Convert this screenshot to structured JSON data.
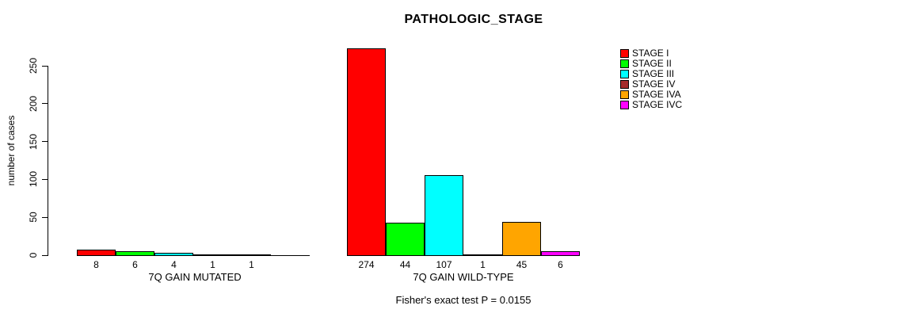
{
  "title": "PATHOLOGIC_STAGE",
  "chart_data": {
    "type": "bar",
    "title": "PATHOLOGIC_STAGE",
    "ylabel": "number of cases",
    "xlabel": "",
    "yticks": [
      0,
      50,
      100,
      150,
      200,
      250
    ],
    "ylim": [
      0,
      250
    ],
    "grid": false,
    "legend_position": "top-right",
    "legend": [
      {
        "label": "STAGE I",
        "color": "#FF0000"
      },
      {
        "label": "STAGE II",
        "color": "#00FF00"
      },
      {
        "label": "STAGE III",
        "color": "#00FFFF"
      },
      {
        "label": "STAGE IV",
        "color": "#A52A2A"
      },
      {
        "label": "STAGE IVA",
        "color": "#FFA500"
      },
      {
        "label": "STAGE IVC",
        "color": "#FF00FF"
      }
    ],
    "groups": [
      {
        "label": "7Q GAIN MUTATED",
        "values": [
          8,
          6,
          4,
          1,
          1,
          0
        ]
      },
      {
        "label": "7Q GAIN WILD-TYPE",
        "values": [
          274,
          44,
          107,
          1,
          45,
          6
        ]
      }
    ],
    "footer": "Fisher's exact test P = 0.0155"
  }
}
